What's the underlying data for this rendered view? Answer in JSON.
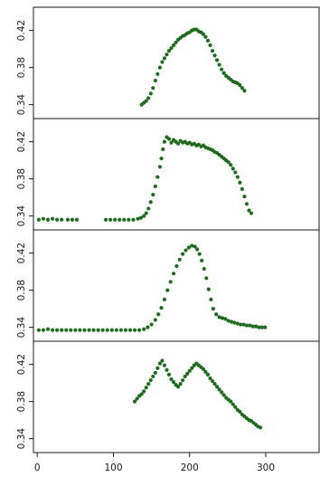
{
  "chart_data": {
    "type": "scatter",
    "xlim": [
      -5,
      370
    ],
    "ylim": [
      0.325,
      0.445
    ],
    "x_ticks": [
      0,
      100,
      200,
      300
    ],
    "x_tick_labels": [
      "0",
      "100",
      "200",
      "300"
    ],
    "y_ticks": [
      0.34,
      0.38,
      0.42
    ],
    "y_tick_labels": [
      "0.34",
      "0.38",
      "0.42"
    ],
    "grid": false,
    "marker_color": "#1e6b1e",
    "panels": [
      {
        "points": [
          [
            137,
            0.34
          ],
          [
            140,
            0.342
          ],
          [
            143,
            0.344
          ],
          [
            146,
            0.347
          ],
          [
            149,
            0.352
          ],
          [
            152,
            0.358
          ],
          [
            155,
            0.366
          ],
          [
            158,
            0.373
          ],
          [
            161,
            0.38
          ],
          [
            164,
            0.386
          ],
          [
            167,
            0.39
          ],
          [
            170,
            0.394
          ],
          [
            173,
            0.398
          ],
          [
            176,
            0.401
          ],
          [
            179,
            0.404
          ],
          [
            182,
            0.407
          ],
          [
            185,
            0.41
          ],
          [
            188,
            0.412
          ],
          [
            191,
            0.414
          ],
          [
            194,
            0.415
          ],
          [
            197,
            0.417
          ],
          [
            200,
            0.418
          ],
          [
            203,
            0.42
          ],
          [
            206,
            0.421
          ],
          [
            209,
            0.421
          ],
          [
            212,
            0.419
          ],
          [
            215,
            0.418
          ],
          [
            218,
            0.416
          ],
          [
            221,
            0.413
          ],
          [
            224,
            0.409
          ],
          [
            227,
            0.404
          ],
          [
            230,
            0.398
          ],
          [
            233,
            0.393
          ],
          [
            236,
            0.388
          ],
          [
            239,
            0.383
          ],
          [
            242,
            0.378
          ],
          [
            245,
            0.374
          ],
          [
            248,
            0.371
          ],
          [
            251,
            0.369
          ],
          [
            254,
            0.367
          ],
          [
            257,
            0.365
          ],
          [
            260,
            0.364
          ],
          [
            263,
            0.363
          ],
          [
            266,
            0.361
          ],
          [
            269,
            0.358
          ],
          [
            272,
            0.355
          ]
        ]
      },
      {
        "points": [
          [
            2,
            0.336
          ],
          [
            8,
            0.337
          ],
          [
            14,
            0.336
          ],
          [
            20,
            0.337
          ],
          [
            26,
            0.336
          ],
          [
            32,
            0.336
          ],
          [
            40,
            0.336
          ],
          [
            46,
            0.336
          ],
          [
            52,
            0.336
          ],
          [
            90,
            0.336
          ],
          [
            96,
            0.336
          ],
          [
            102,
            0.336
          ],
          [
            108,
            0.336
          ],
          [
            114,
            0.336
          ],
          [
            120,
            0.336
          ],
          [
            126,
            0.336
          ],
          [
            132,
            0.337
          ],
          [
            136,
            0.338
          ],
          [
            140,
            0.34
          ],
          [
            143,
            0.343
          ],
          [
            146,
            0.348
          ],
          [
            149,
            0.355
          ],
          [
            152,
            0.363
          ],
          [
            155,
            0.372
          ],
          [
            158,
            0.382
          ],
          [
            161,
            0.393
          ],
          [
            163,
            0.402
          ],
          [
            165,
            0.412
          ],
          [
            167,
            0.42
          ],
          [
            170,
            0.425
          ],
          [
            173,
            0.423
          ],
          [
            176,
            0.419
          ],
          [
            179,
            0.422
          ],
          [
            182,
            0.42
          ],
          [
            185,
            0.418
          ],
          [
            188,
            0.421
          ],
          [
            191,
            0.419
          ],
          [
            194,
            0.42
          ],
          [
            197,
            0.418
          ],
          [
            200,
            0.419
          ],
          [
            203,
            0.417
          ],
          [
            206,
            0.418
          ],
          [
            209,
            0.416
          ],
          [
            212,
            0.417
          ],
          [
            215,
            0.415
          ],
          [
            218,
            0.416
          ],
          [
            221,
            0.414
          ],
          [
            224,
            0.413
          ],
          [
            227,
            0.412
          ],
          [
            230,
            0.411
          ],
          [
            233,
            0.409
          ],
          [
            236,
            0.408
          ],
          [
            239,
            0.406
          ],
          [
            242,
            0.404
          ],
          [
            245,
            0.402
          ],
          [
            248,
            0.4
          ],
          [
            251,
            0.398
          ],
          [
            254,
            0.395
          ],
          [
            257,
            0.391
          ],
          [
            260,
            0.387
          ],
          [
            263,
            0.382
          ],
          [
            266,
            0.376
          ],
          [
            269,
            0.369
          ],
          [
            272,
            0.361
          ],
          [
            275,
            0.353
          ],
          [
            278,
            0.346
          ],
          [
            281,
            0.343
          ]
        ]
      },
      {
        "points": [
          [
            2,
            0.337
          ],
          [
            8,
            0.337
          ],
          [
            14,
            0.338
          ],
          [
            20,
            0.337
          ],
          [
            26,
            0.337
          ],
          [
            32,
            0.337
          ],
          [
            38,
            0.337
          ],
          [
            44,
            0.337
          ],
          [
            50,
            0.337
          ],
          [
            56,
            0.337
          ],
          [
            62,
            0.337
          ],
          [
            68,
            0.337
          ],
          [
            74,
            0.337
          ],
          [
            80,
            0.337
          ],
          [
            86,
            0.337
          ],
          [
            92,
            0.337
          ],
          [
            98,
            0.337
          ],
          [
            104,
            0.337
          ],
          [
            110,
            0.337
          ],
          [
            116,
            0.337
          ],
          [
            122,
            0.337
          ],
          [
            128,
            0.337
          ],
          [
            134,
            0.337
          ],
          [
            140,
            0.338
          ],
          [
            145,
            0.34
          ],
          [
            150,
            0.343
          ],
          [
            155,
            0.348
          ],
          [
            159,
            0.354
          ],
          [
            163,
            0.361
          ],
          [
            167,
            0.37
          ],
          [
            171,
            0.38
          ],
          [
            175,
            0.389
          ],
          [
            179,
            0.398
          ],
          [
            183,
            0.406
          ],
          [
            187,
            0.413
          ],
          [
            191,
            0.419
          ],
          [
            195,
            0.423
          ],
          [
            199,
            0.426
          ],
          [
            203,
            0.428
          ],
          [
            207,
            0.427
          ],
          [
            210,
            0.424
          ],
          [
            213,
            0.419
          ],
          [
            216,
            0.412
          ],
          [
            219,
            0.403
          ],
          [
            222,
            0.393
          ],
          [
            225,
            0.381
          ],
          [
            228,
            0.37
          ],
          [
            231,
            0.36
          ],
          [
            235,
            0.354
          ],
          [
            239,
            0.351
          ],
          [
            243,
            0.35
          ],
          [
            247,
            0.349
          ],
          [
            251,
            0.347
          ],
          [
            255,
            0.346
          ],
          [
            259,
            0.345
          ],
          [
            263,
            0.344
          ],
          [
            267,
            0.343
          ],
          [
            271,
            0.343
          ],
          [
            275,
            0.342
          ],
          [
            279,
            0.342
          ],
          [
            283,
            0.341
          ],
          [
            287,
            0.341
          ],
          [
            291,
            0.34
          ],
          [
            295,
            0.34
          ],
          [
            299,
            0.34
          ]
        ]
      },
      {
        "points": [
          [
            128,
            0.38
          ],
          [
            131,
            0.383
          ],
          [
            134,
            0.386
          ],
          [
            137,
            0.388
          ],
          [
            140,
            0.391
          ],
          [
            143,
            0.395
          ],
          [
            146,
            0.399
          ],
          [
            149,
            0.403
          ],
          [
            152,
            0.407
          ],
          [
            155,
            0.411
          ],
          [
            158,
            0.416
          ],
          [
            161,
            0.421
          ],
          [
            164,
            0.424
          ],
          [
            167,
            0.419
          ],
          [
            170,
            0.414
          ],
          [
            173,
            0.409
          ],
          [
            176,
            0.404
          ],
          [
            179,
            0.401
          ],
          [
            182,
            0.398
          ],
          [
            185,
            0.396
          ],
          [
            188,
            0.399
          ],
          [
            191,
            0.403
          ],
          [
            194,
            0.407
          ],
          [
            197,
            0.41
          ],
          [
            200,
            0.413
          ],
          [
            203,
            0.416
          ],
          [
            206,
            0.419
          ],
          [
            209,
            0.421
          ],
          [
            212,
            0.419
          ],
          [
            215,
            0.417
          ],
          [
            218,
            0.415
          ],
          [
            221,
            0.412
          ],
          [
            224,
            0.409
          ],
          [
            227,
            0.405
          ],
          [
            230,
            0.402
          ],
          [
            233,
            0.399
          ],
          [
            236,
            0.396
          ],
          [
            239,
            0.393
          ],
          [
            242,
            0.39
          ],
          [
            245,
            0.387
          ],
          [
            248,
            0.384
          ],
          [
            251,
            0.382
          ],
          [
            254,
            0.38
          ],
          [
            257,
            0.377
          ],
          [
            260,
            0.374
          ],
          [
            263,
            0.371
          ],
          [
            266,
            0.369
          ],
          [
            269,
            0.366
          ],
          [
            272,
            0.364
          ],
          [
            275,
            0.362
          ],
          [
            278,
            0.36
          ],
          [
            281,
            0.359
          ],
          [
            284,
            0.357
          ],
          [
            287,
            0.355
          ],
          [
            290,
            0.353
          ],
          [
            293,
            0.352
          ]
        ]
      }
    ]
  }
}
